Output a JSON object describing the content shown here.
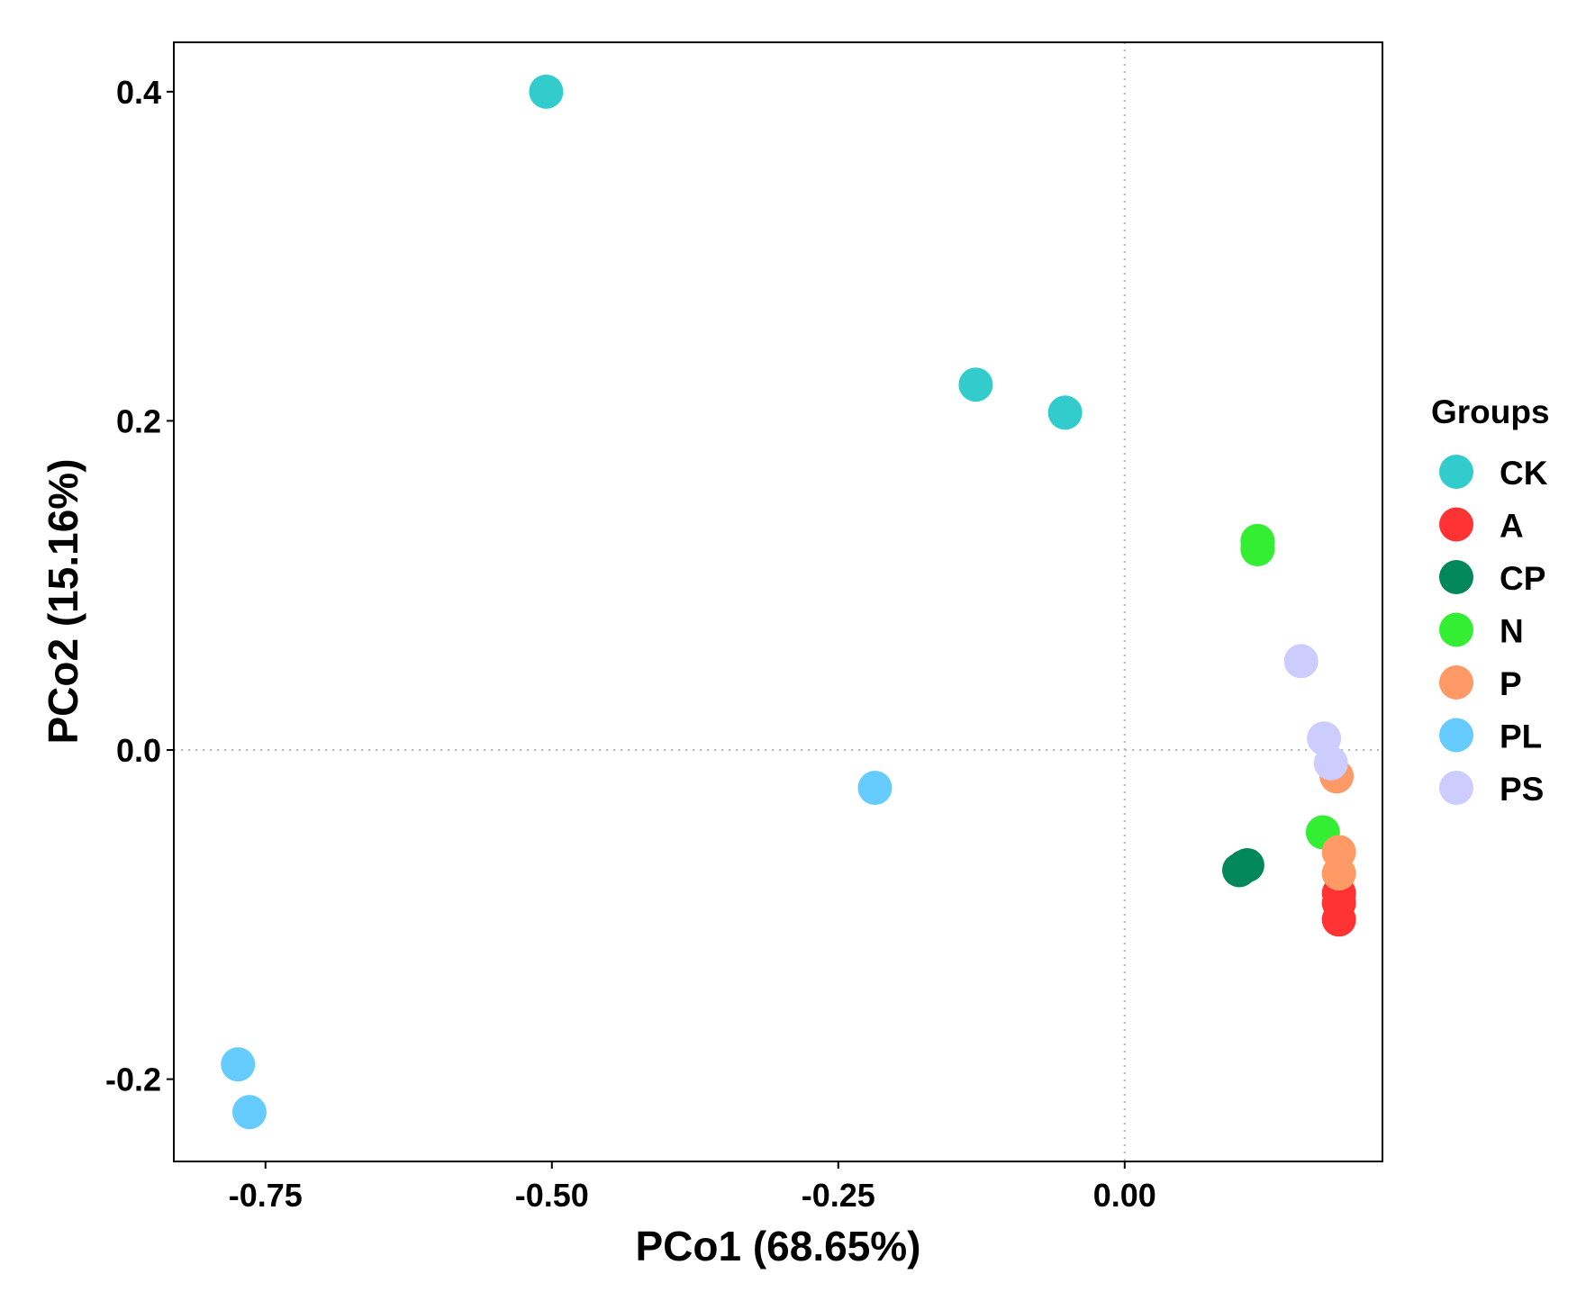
{
  "chart_data": {
    "type": "scatter",
    "xlabel": "PCo1 (68.65%)",
    "ylabel": "PCo2 (15.16%)",
    "xlim": [
      -0.83,
      0.225
    ],
    "ylim": [
      -0.25,
      0.43
    ],
    "x_ticks": [
      {
        "value": -0.75,
        "label": "-0.75"
      },
      {
        "value": -0.5,
        "label": "-0.50"
      },
      {
        "value": -0.25,
        "label": "-0.25"
      },
      {
        "value": 0.0,
        "label": "0.00"
      }
    ],
    "y_ticks": [
      {
        "value": 0.4,
        "label": "0.4"
      },
      {
        "value": 0.2,
        "label": "0.2"
      },
      {
        "value": 0.0,
        "label": "0.0"
      },
      {
        "value": -0.2,
        "label": "-0.2"
      }
    ],
    "reference_lines": {
      "x": 0,
      "y": 0,
      "style": "dotted"
    },
    "grid": false,
    "legend": {
      "title": "Groups",
      "position": "right"
    },
    "series": [
      {
        "name": "CK",
        "color": "#33CCCC",
        "points": [
          [
            -0.505,
            0.4
          ],
          [
            -0.13,
            0.222
          ],
          [
            -0.052,
            0.205
          ]
        ]
      },
      {
        "name": "A",
        "color": "#FF3333",
        "points": [
          [
            0.187,
            -0.087
          ],
          [
            0.187,
            -0.093
          ],
          [
            0.187,
            -0.103
          ]
        ]
      },
      {
        "name": "CP",
        "color": "#00875A",
        "points": [
          [
            0.1,
            -0.073
          ],
          [
            0.104,
            -0.071
          ],
          [
            0.107,
            -0.07
          ]
        ]
      },
      {
        "name": "N",
        "color": "#33EE33",
        "points": [
          [
            0.116,
            0.127
          ],
          [
            0.116,
            0.122
          ],
          [
            0.173,
            -0.05
          ]
        ]
      },
      {
        "name": "P",
        "color": "#FF9966",
        "points": [
          [
            0.185,
            -0.016
          ],
          [
            0.187,
            -0.062
          ],
          [
            0.187,
            -0.075
          ]
        ]
      },
      {
        "name": "PL",
        "color": "#66CCFF",
        "points": [
          [
            -0.218,
            -0.023
          ],
          [
            -0.774,
            -0.191
          ],
          [
            -0.764,
            -0.22
          ]
        ]
      },
      {
        "name": "PS",
        "color": "#CCCCFF",
        "points": [
          [
            0.154,
            0.054
          ],
          [
            0.174,
            0.007
          ],
          [
            0.18,
            -0.008
          ]
        ]
      }
    ]
  }
}
